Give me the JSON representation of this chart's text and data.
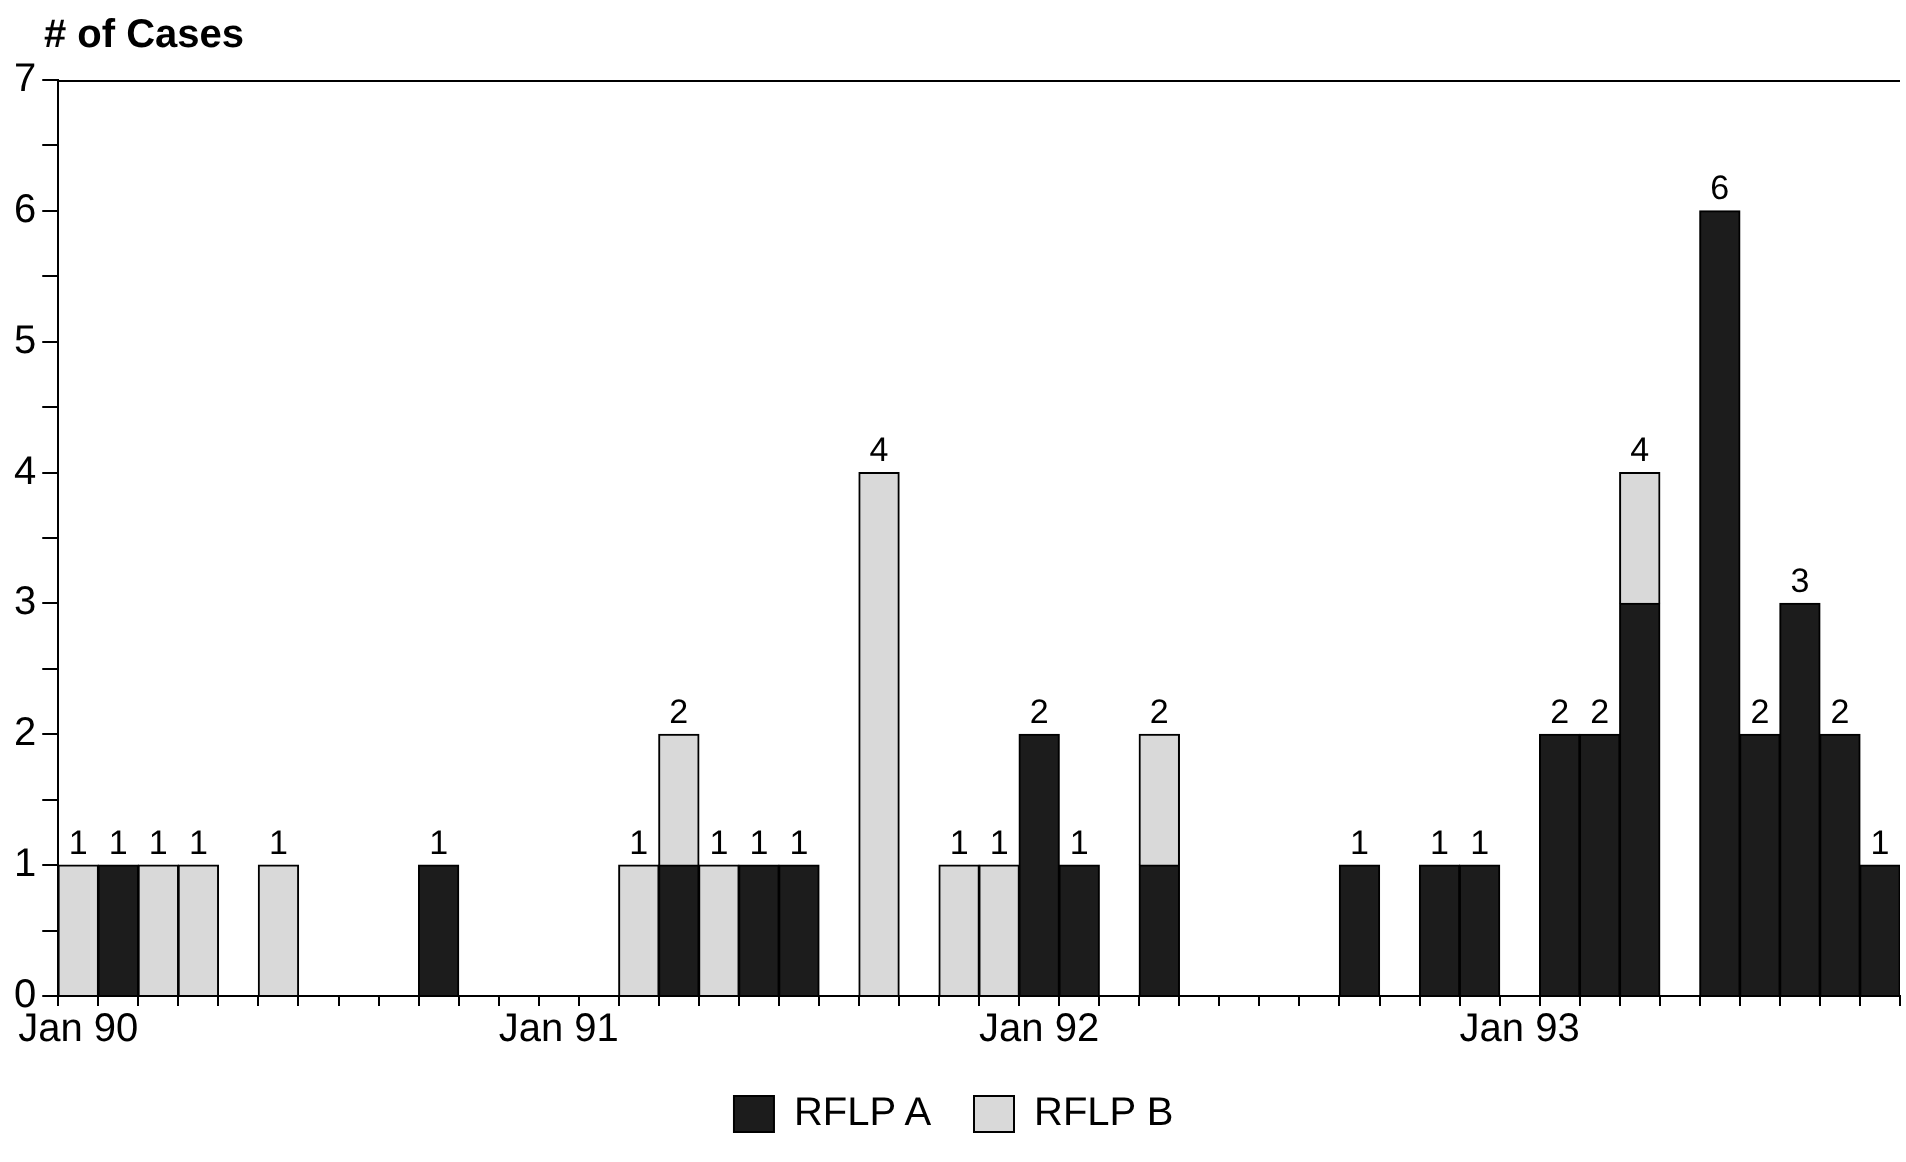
{
  "chart_data": {
    "type": "bar",
    "stacked": true,
    "ylabel": "# of Cases",
    "categories": [
      "Jan 90",
      null,
      null,
      null,
      null,
      null,
      null,
      null,
      null,
      null,
      null,
      null,
      "Jan 91",
      null,
      null,
      null,
      null,
      null,
      null,
      null,
      null,
      null,
      null,
      null,
      "Jan 92",
      null,
      null,
      null,
      null,
      null,
      null,
      null,
      null,
      null,
      null,
      null,
      "Jan 93",
      null,
      null,
      null,
      null,
      null,
      null,
      null,
      null,
      null
    ],
    "series": [
      {
        "name": "RFLP A",
        "color": "#1c1c1c",
        "values": [
          null,
          1,
          null,
          null,
          null,
          null,
          null,
          null,
          null,
          1,
          null,
          null,
          null,
          null,
          null,
          1,
          null,
          1,
          1,
          null,
          null,
          null,
          null,
          null,
          2,
          1,
          null,
          1,
          null,
          null,
          null,
          null,
          1,
          null,
          1,
          1,
          null,
          2,
          2,
          3,
          null,
          6,
          2,
          3,
          2,
          1
        ]
      },
      {
        "name": "RFLP B",
        "color": "#d9d9d9",
        "values": [
          1,
          null,
          1,
          1,
          null,
          1,
          null,
          null,
          null,
          null,
          null,
          null,
          null,
          null,
          1,
          1,
          1,
          null,
          null,
          null,
          4,
          null,
          1,
          1,
          null,
          null,
          null,
          1,
          null,
          null,
          null,
          null,
          null,
          null,
          null,
          null,
          null,
          null,
          null,
          1,
          null,
          null,
          null,
          null,
          null,
          null
        ]
      }
    ],
    "totals": [
      "1",
      "1",
      "1",
      "1",
      null,
      "1",
      null,
      null,
      null,
      "1",
      null,
      null,
      null,
      null,
      "1",
      "2",
      "1",
      "1",
      "1",
      null,
      "4",
      null,
      "1",
      "1",
      "2",
      "1",
      null,
      "2",
      null,
      null,
      null,
      null,
      "1",
      null,
      "1",
      "1",
      null,
      "2",
      "2",
      "4",
      null,
      "6",
      "2",
      "3",
      "2",
      "1"
    ],
    "ylim": [
      0,
      7
    ],
    "yticks": [
      0,
      {
        "value": 0.5,
        "label": null
      },
      1,
      {
        "value": 1.5,
        "label": null
      },
      2,
      {
        "value": 2.5,
        "label": null
      },
      3,
      {
        "value": 3.5,
        "label": null
      },
      4,
      {
        "value": 4.5,
        "label": null
      },
      5,
      {
        "value": 5.5,
        "label": null
      },
      6,
      {
        "value": 6.5,
        "label": null
      },
      7
    ],
    "grid": false,
    "legend": "bottom"
  }
}
